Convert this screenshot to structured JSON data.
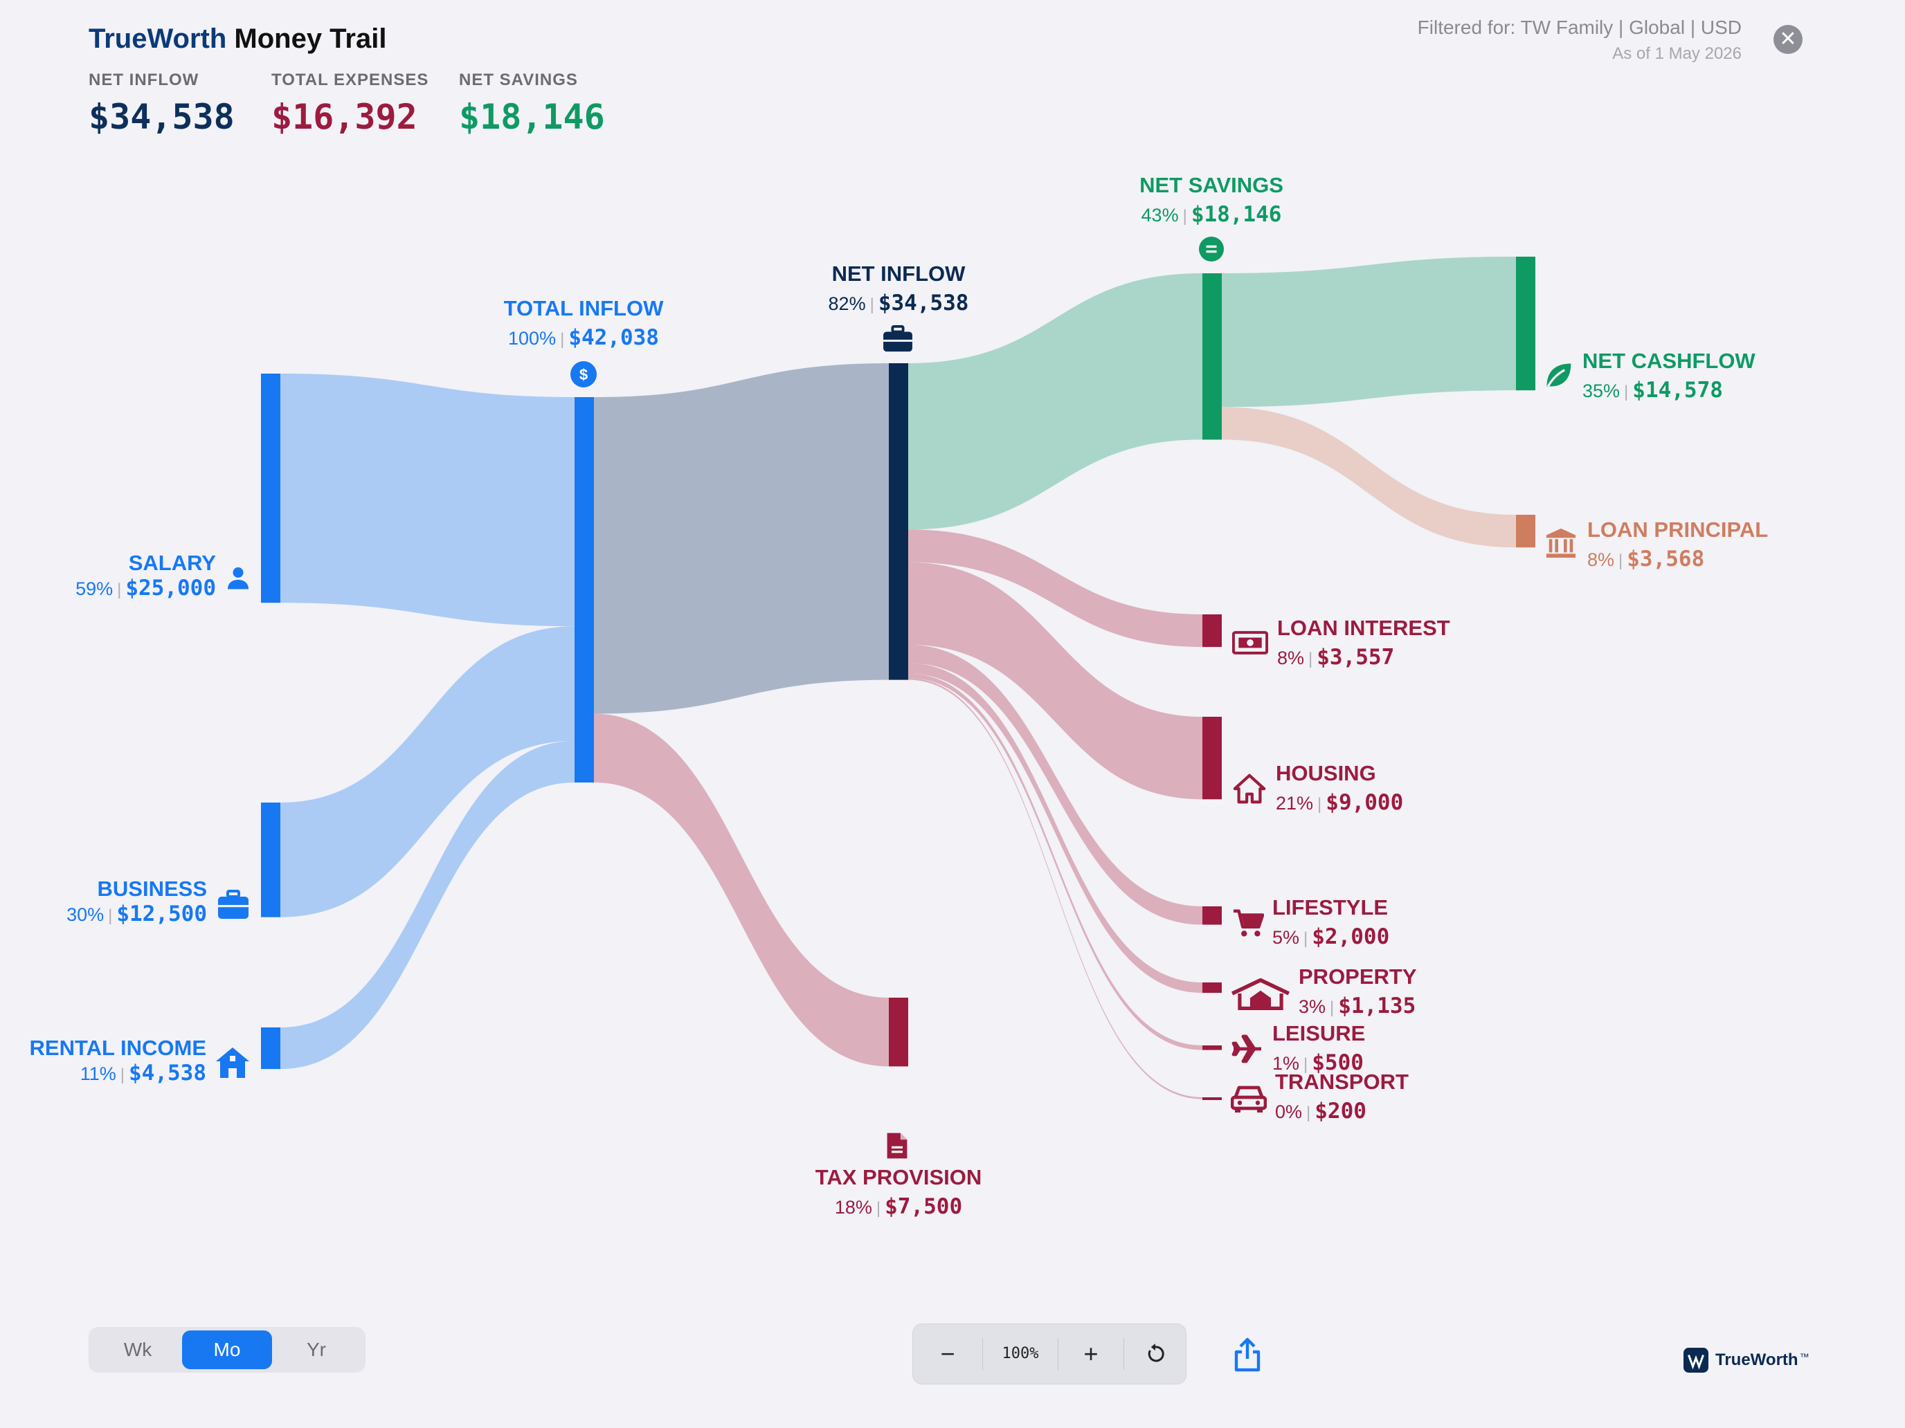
{
  "header": {
    "brand_true": "TrueWorth",
    "brand_rest": " Money Trail",
    "filter_text": "Filtered for: TW Family | Global | USD",
    "as_of": "As of 1 May 2026",
    "close_icon": "close-icon"
  },
  "kpis": [
    {
      "label": "NET INFLOW",
      "value": "$34,538",
      "color": "#0e2f5a"
    },
    {
      "label": "TOTAL EXPENSES",
      "value": "$16,392",
      "color": "#9c1b3e"
    },
    {
      "label": "NET SAVINGS",
      "value": "$18,146",
      "color": "#0f9a63"
    }
  ],
  "colors": {
    "income": "#1778f2",
    "income_flow": "#abcbf5",
    "net_inflow": "#0b2a52",
    "net_flow": "#a9b5c7",
    "savings": "#0f9a63",
    "savings_flow": "#a9d6c8",
    "loan_principal": "#cf7d5f",
    "loan_principal_flow": "#e8cec7",
    "expense": "#9c1b3e",
    "expense_flow": "#dbafbc"
  },
  "nodes": {
    "salary": {
      "name": "SALARY",
      "pct": "59%",
      "amount": "$25,000",
      "icon": "person-icon"
    },
    "business": {
      "name": "BUSINESS",
      "pct": "30%",
      "amount": "$12,500",
      "icon": "briefcase-icon"
    },
    "rental": {
      "name": "RENTAL INCOME",
      "pct": "11%",
      "amount": "$4,538",
      "icon": "house-icon"
    },
    "total_inflow": {
      "name": "TOTAL INFLOW",
      "pct": "100%",
      "amount": "$42,038",
      "icon": "dollar-icon"
    },
    "net_inflow": {
      "name": "NET INFLOW",
      "pct": "82%",
      "amount": "$34,538",
      "icon": "briefcase-icon"
    },
    "tax": {
      "name": "TAX PROVISION",
      "pct": "18%",
      "amount": "$7,500",
      "icon": "document-icon"
    },
    "net_savings": {
      "name": "NET SAVINGS",
      "pct": "43%",
      "amount": "$18,146",
      "icon": "equals-icon"
    },
    "net_cashflow": {
      "name": "NET CASHFLOW",
      "pct": "35%",
      "amount": "$14,578",
      "icon": "leaf-icon"
    },
    "loan_principal": {
      "name": "LOAN PRINCIPAL",
      "pct": "8%",
      "amount": "$3,568",
      "icon": "bank-icon"
    },
    "loan_interest": {
      "name": "LOAN INTEREST",
      "pct": "8%",
      "amount": "$3,557",
      "icon": "banknote-icon"
    },
    "housing": {
      "name": "HOUSING",
      "pct": "21%",
      "amount": "$9,000",
      "icon": "home-icon"
    },
    "lifestyle": {
      "name": "LIFESTYLE",
      "pct": "5%",
      "amount": "$2,000",
      "icon": "cart-icon"
    },
    "property": {
      "name": "PROPERTY",
      "pct": "3%",
      "amount": "$1,135",
      "icon": "property-icon"
    },
    "leisure": {
      "name": "LEISURE",
      "pct": "1%",
      "amount": "$500",
      "icon": "airplane-icon"
    },
    "transport": {
      "name": "TRANSPORT",
      "pct": "0%",
      "amount": "$200",
      "icon": "car-icon"
    }
  },
  "flows": [
    {
      "from": "SALARY",
      "to": "TOTAL INFLOW",
      "value": 25000
    },
    {
      "from": "BUSINESS",
      "to": "TOTAL INFLOW",
      "value": 12500
    },
    {
      "from": "RENTAL INCOME",
      "to": "TOTAL INFLOW",
      "value": 4538
    },
    {
      "from": "TOTAL INFLOW",
      "to": "NET INFLOW",
      "value": 34538
    },
    {
      "from": "TOTAL INFLOW",
      "to": "TAX PROVISION",
      "value": 7500
    },
    {
      "from": "NET INFLOW",
      "to": "NET SAVINGS",
      "value": 18146
    },
    {
      "from": "NET INFLOW",
      "to": "LOAN INTEREST",
      "value": 3557
    },
    {
      "from": "NET INFLOW",
      "to": "HOUSING",
      "value": 9000
    },
    {
      "from": "NET INFLOW",
      "to": "LIFESTYLE",
      "value": 2000
    },
    {
      "from": "NET INFLOW",
      "to": "PROPERTY",
      "value": 1135
    },
    {
      "from": "NET INFLOW",
      "to": "LEISURE",
      "value": 500
    },
    {
      "from": "NET INFLOW",
      "to": "TRANSPORT",
      "value": 200
    },
    {
      "from": "NET SAVINGS",
      "to": "NET CASHFLOW",
      "value": 14578
    },
    {
      "from": "NET SAVINGS",
      "to": "LOAN PRINCIPAL",
      "value": 3568
    }
  ],
  "period": {
    "options": [
      "Wk",
      "Mo",
      "Yr"
    ],
    "selected": "Mo"
  },
  "zoom": {
    "minus": "−",
    "level": "100%",
    "plus": "+",
    "reset_icon": "reset-icon"
  },
  "share_icon": "share-icon",
  "footer_logo": {
    "text": "TrueWorth",
    "tm": "™",
    "icon": "trueworth-logo-icon"
  }
}
